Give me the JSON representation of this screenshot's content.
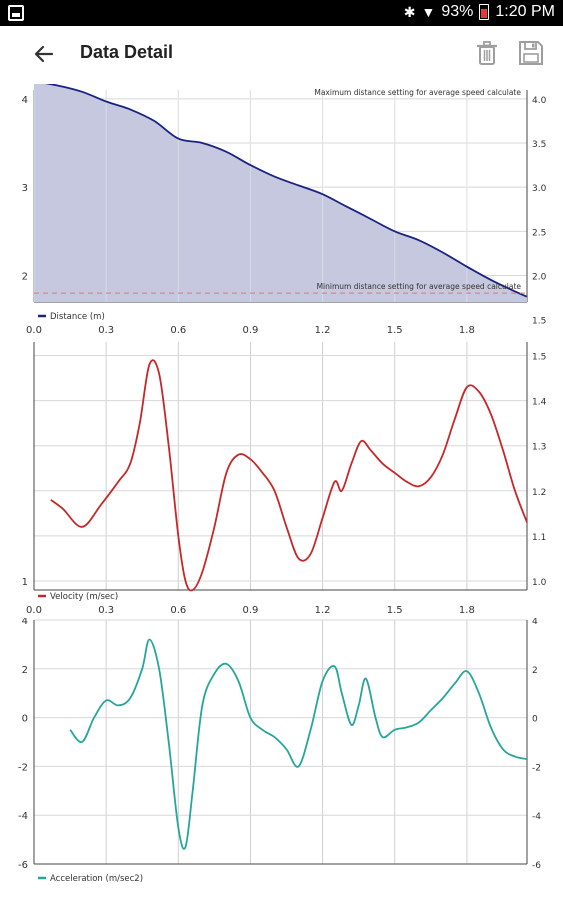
{
  "status_bar": {
    "battery": "93%",
    "time": "1:20 PM",
    "icons": [
      "bluetooth-icon",
      "wifi-icon",
      "battery-icon",
      "gallery-icon"
    ]
  },
  "app_bar": {
    "title": "Data Detail",
    "icons": [
      "back-arrow-icon",
      "trash-icon",
      "save-icon"
    ]
  },
  "chart_data": [
    {
      "type": "area",
      "legend": "Distance (m)",
      "legend_placement": "bottom-left",
      "color": "#1a237e",
      "fill": "#c5c8de",
      "xlim": [
        0,
        2.05
      ],
      "xticks": [
        0,
        0.3,
        0.6,
        0.9,
        1.2,
        1.5,
        1.8
      ],
      "xtick_labels": [
        "0.0",
        "0.3",
        "0.6",
        "0.9",
        "1.2",
        "1.5",
        "1.8"
      ],
      "ylim": [
        1.7,
        4.1
      ],
      "yticks_left": [
        2,
        3,
        4
      ],
      "yticks_right": [
        1.5,
        2.0,
        2.5,
        3.0,
        3.5,
        4.0
      ],
      "ytick_right_labels": [
        "1.5",
        "2.0",
        "2.5",
        "3.0",
        "3.5",
        "4.0"
      ],
      "annotations": [
        {
          "text": "Maximum distance setting for average speed calculate",
          "y": 4.0
        },
        {
          "text": "Minimum distance setting for average speed calculate",
          "y": 1.8
        }
      ],
      "grid": true,
      "x": [
        0,
        0.1,
        0.2,
        0.3,
        0.4,
        0.5,
        0.6,
        0.7,
        0.8,
        0.9,
        1.0,
        1.1,
        1.2,
        1.3,
        1.4,
        1.5,
        1.6,
        1.7,
        1.8,
        1.9,
        2.0,
        2.05
      ],
      "values": [
        4.2,
        4.15,
        4.08,
        3.97,
        3.88,
        3.75,
        3.55,
        3.5,
        3.4,
        3.25,
        3.12,
        3.02,
        2.92,
        2.78,
        2.64,
        2.5,
        2.4,
        2.26,
        2.1,
        1.95,
        1.82,
        1.76
      ]
    },
    {
      "type": "line",
      "legend": "Velocity (m/sec)",
      "legend_placement": "bottom-left",
      "color": "#c62828",
      "xlim": [
        0,
        2.05
      ],
      "xticks": [
        0,
        0.3,
        0.6,
        0.9,
        1.2,
        1.5,
        1.8
      ],
      "xtick_labels": [
        "0.0",
        "0.3",
        "0.6",
        "0.9",
        "1.2",
        "1.5",
        "1.8"
      ],
      "ylim": [
        0.98,
        1.53
      ],
      "yticks_left": [
        1
      ],
      "yticks_right": [
        1.0,
        1.1,
        1.2,
        1.3,
        1.4,
        1.5
      ],
      "ytick_right_labels": [
        "1.0",
        "1.1",
        "1.2",
        "1.3",
        "1.4",
        "1.5"
      ],
      "grid": true,
      "x": [
        0.07,
        0.12,
        0.2,
        0.28,
        0.35,
        0.4,
        0.44,
        0.48,
        0.52,
        0.56,
        0.6,
        0.63,
        0.66,
        0.7,
        0.75,
        0.8,
        0.85,
        0.9,
        0.95,
        1.0,
        1.05,
        1.1,
        1.15,
        1.2,
        1.25,
        1.28,
        1.32,
        1.36,
        1.4,
        1.45,
        1.5,
        1.55,
        1.6,
        1.65,
        1.7,
        1.75,
        1.8,
        1.85,
        1.9,
        1.95,
        2.0,
        2.05
      ],
      "values": [
        1.18,
        1.16,
        1.12,
        1.17,
        1.22,
        1.26,
        1.35,
        1.48,
        1.46,
        1.3,
        1.1,
        1.0,
        0.98,
        1.02,
        1.12,
        1.24,
        1.28,
        1.27,
        1.24,
        1.2,
        1.12,
        1.05,
        1.06,
        1.14,
        1.22,
        1.2,
        1.26,
        1.31,
        1.29,
        1.26,
        1.24,
        1.22,
        1.21,
        1.23,
        1.28,
        1.36,
        1.43,
        1.42,
        1.37,
        1.29,
        1.2,
        1.13
      ]
    },
    {
      "type": "line",
      "legend": "Acceleration (m/sec2)",
      "legend_placement": "bottom-left",
      "color": "#26a69a",
      "xlim": [
        0,
        2.05
      ],
      "xticks": [
        0,
        0.3,
        0.6,
        0.9,
        1.2,
        1.5,
        1.8
      ],
      "ylim": [
        -6,
        4
      ],
      "yticks_left": [
        -6,
        -4,
        -2,
        0,
        2,
        4
      ],
      "yticks_right": [
        -6,
        -4,
        -2,
        0,
        2,
        4
      ],
      "ytick_labels": [
        "-6",
        "-4",
        "-2",
        "0",
        "2",
        "4"
      ],
      "grid": true,
      "x": [
        0.15,
        0.2,
        0.25,
        0.3,
        0.35,
        0.4,
        0.45,
        0.48,
        0.52,
        0.56,
        0.6,
        0.63,
        0.66,
        0.7,
        0.75,
        0.8,
        0.85,
        0.9,
        0.95,
        1.0,
        1.05,
        1.1,
        1.15,
        1.2,
        1.25,
        1.28,
        1.32,
        1.35,
        1.38,
        1.42,
        1.45,
        1.5,
        1.55,
        1.6,
        1.65,
        1.7,
        1.75,
        1.8,
        1.85,
        1.9,
        1.95,
        2.0,
        2.05
      ],
      "values": [
        -0.5,
        -1.0,
        0.0,
        0.7,
        0.5,
        0.8,
        2.0,
        3.2,
        2.0,
        -1.0,
        -4.5,
        -5.3,
        -3.0,
        0.5,
        1.8,
        2.2,
        1.5,
        0.0,
        -0.5,
        -0.8,
        -1.3,
        -2.0,
        -0.5,
        1.5,
        2.1,
        1.0,
        -0.3,
        0.5,
        1.6,
        0.0,
        -0.8,
        -0.5,
        -0.4,
        -0.2,
        0.3,
        0.8,
        1.4,
        1.9,
        1.0,
        -0.4,
        -1.3,
        -1.6,
        -1.7
      ]
    }
  ]
}
